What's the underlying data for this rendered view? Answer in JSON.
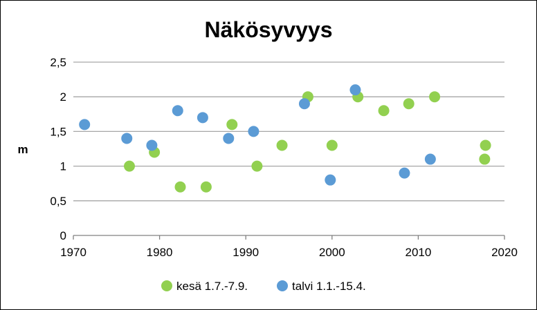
{
  "chart_data": {
    "type": "scatter",
    "title": "Näkösyvyys",
    "xlabel": "",
    "ylabel": "m",
    "xlim": [
      1970,
      2020
    ],
    "ylim": [
      0,
      2.5
    ],
    "x_ticks": [
      1970,
      1980,
      1990,
      2000,
      2010,
      2020
    ],
    "x_tick_labels": [
      "1970",
      "1980",
      "1990",
      "2000",
      "2010",
      "2020"
    ],
    "y_ticks": [
      0,
      0.5,
      1,
      1.5,
      2,
      2.5
    ],
    "y_tick_labels": [
      "0",
      "0,5",
      "1",
      "1,5",
      "2",
      "2,5"
    ],
    "grid": "horizontal",
    "legend_position": "bottom",
    "series": [
      {
        "name": "kesä 1.7.-7.9.",
        "color": "#92d050",
        "points": [
          [
            1976.5,
            1.0
          ],
          [
            1979.4,
            1.2
          ],
          [
            1982.4,
            0.7
          ],
          [
            1985.4,
            0.7
          ],
          [
            1988.4,
            1.6
          ],
          [
            1991.3,
            1.0
          ],
          [
            1994.2,
            1.3
          ],
          [
            1997.2,
            2.0
          ],
          [
            2000.0,
            1.3
          ],
          [
            2003.0,
            2.0
          ],
          [
            2006.0,
            1.8
          ],
          [
            2008.9,
            1.9
          ],
          [
            2011.9,
            2.0
          ],
          [
            2017.7,
            1.1
          ],
          [
            2017.8,
            1.3
          ]
        ]
      },
      {
        "name": "talvi 1.1.-15.4.",
        "color": "#5b9bd5",
        "points": [
          [
            1971.3,
            1.6
          ],
          [
            1976.2,
            1.4
          ],
          [
            1979.1,
            1.3
          ],
          [
            1982.1,
            1.8
          ],
          [
            1985.0,
            1.7
          ],
          [
            1988.0,
            1.4
          ],
          [
            1990.9,
            1.5
          ],
          [
            1996.8,
            1.9
          ],
          [
            1999.8,
            0.8
          ],
          [
            2002.7,
            2.1
          ],
          [
            2008.4,
            0.9
          ],
          [
            2011.4,
            1.1
          ]
        ]
      }
    ]
  }
}
